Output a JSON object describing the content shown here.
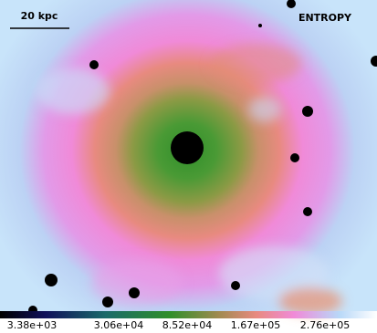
{
  "scale_bar": "20 kpc",
  "label": "ENTROPY",
  "colorbar": {
    "ticks": [
      "3.38e+03",
      "3.06e+04",
      "8.52e+04",
      "1.67e+05",
      "2.76e+05"
    ]
  }
}
